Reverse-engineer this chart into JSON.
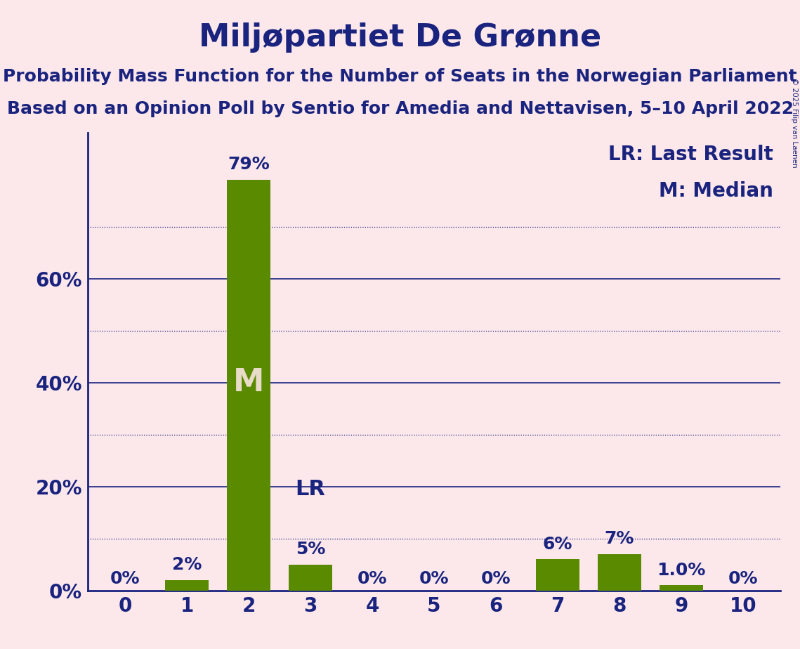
{
  "title": "Miljøpartiet De Grønne",
  "subtitle1": "Probability Mass Function for the Number of Seats in the Norwegian Parliament",
  "subtitle2": "Based on an Opinion Poll by Sentio for Amedia and Nettavisen, 5–10 April 2022",
  "copyright": "© 2025 Filip van Laenen",
  "seats": [
    0,
    1,
    2,
    3,
    4,
    5,
    6,
    7,
    8,
    9,
    10
  ],
  "probabilities": [
    0.0,
    0.02,
    0.79,
    0.05,
    0.0,
    0.0,
    0.0,
    0.06,
    0.07,
    0.01,
    0.0
  ],
  "bar_labels": [
    "0%",
    "2%",
    "79%",
    "5%",
    "0%",
    "0%",
    "0%",
    "6%",
    "7%",
    "1.0%",
    "0%"
  ],
  "bar_color": "#5a8a00",
  "median_seat": 2,
  "lr_seat": 3,
  "background_color": "#fce8eb",
  "text_color": "#1a237e",
  "ylabel_ticks": [
    0.0,
    0.2,
    0.4,
    0.6
  ],
  "ylabel_labels": [
    "0%",
    "20%",
    "40%",
    "60%"
  ],
  "ylim": [
    0,
    0.88
  ],
  "title_fontsize": 32,
  "subtitle_fontsize": 18,
  "tick_fontsize": 20,
  "bar_label_fontsize": 18,
  "legend_fontsize": 20,
  "m_label_color": "#e8dcc8",
  "dotted_gridlines": [
    0.1,
    0.3,
    0.5,
    0.7
  ],
  "solid_gridlines": [
    0.2,
    0.4,
    0.6
  ]
}
